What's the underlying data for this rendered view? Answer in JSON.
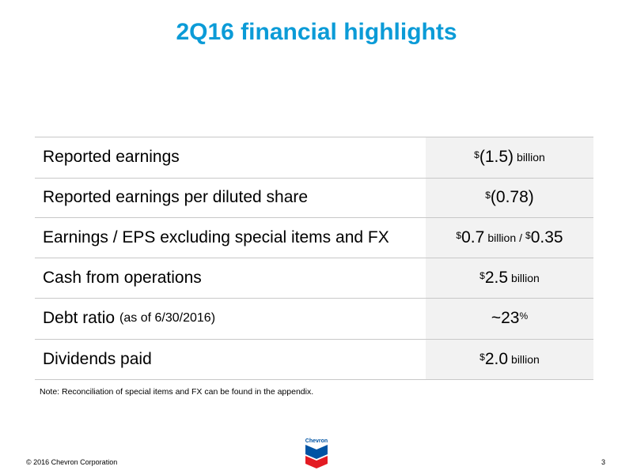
{
  "title": "2Q16 financial highlights",
  "rows": [
    {
      "label": "Reported earnings",
      "sub": "",
      "v1_sup": "$",
      "v1": "(1.5)",
      "v1_unit": "billion",
      "sep": "",
      "v2_sup": "",
      "v2": "",
      "v2_unit": ""
    },
    {
      "label": "Reported earnings per diluted share",
      "sub": "",
      "v1_sup": "$",
      "v1": "(0.78)",
      "v1_unit": "",
      "sep": "",
      "v2_sup": "",
      "v2": "",
      "v2_unit": ""
    },
    {
      "label": "Earnings / EPS excluding special items and FX",
      "sub": "",
      "v1_sup": "$",
      "v1": "0.7",
      "v1_unit": "billion",
      "sep": "/",
      "v2_sup": "$",
      "v2": "0.35",
      "v2_unit": ""
    },
    {
      "label": "Cash from operations",
      "sub": "",
      "v1_sup": "$",
      "v1": "2.5",
      "v1_unit": "billion",
      "sep": "",
      "v2_sup": "",
      "v2": "",
      "v2_unit": ""
    },
    {
      "label": "Debt ratio",
      "sub": "(as of 6/30/2016)",
      "v1_sup": "",
      "v1": "~23",
      "v1_unit": "",
      "sep": "",
      "v2_sup": "",
      "v2": "",
      "v2_unit": "",
      "suffix_sup": "%"
    },
    {
      "label": "Dividends paid",
      "sub": "",
      "v1_sup": "$",
      "v1": "2.0",
      "v1_unit": "billion",
      "sep": "",
      "v2_sup": "",
      "v2": "",
      "v2_unit": ""
    }
  ],
  "note": "Note: Reconciliation of special items and FX can be found in the appendix.",
  "footer": "© 2016 Chevron Corporation",
  "page_number": "3",
  "logo": {
    "text": "Chevron",
    "colors": {
      "blue": "#0054a4",
      "red": "#e31b23"
    }
  },
  "colors": {
    "title": "#0b9bd7",
    "value_bg": "#f2f2f2",
    "rule": "#c8c8c8"
  }
}
